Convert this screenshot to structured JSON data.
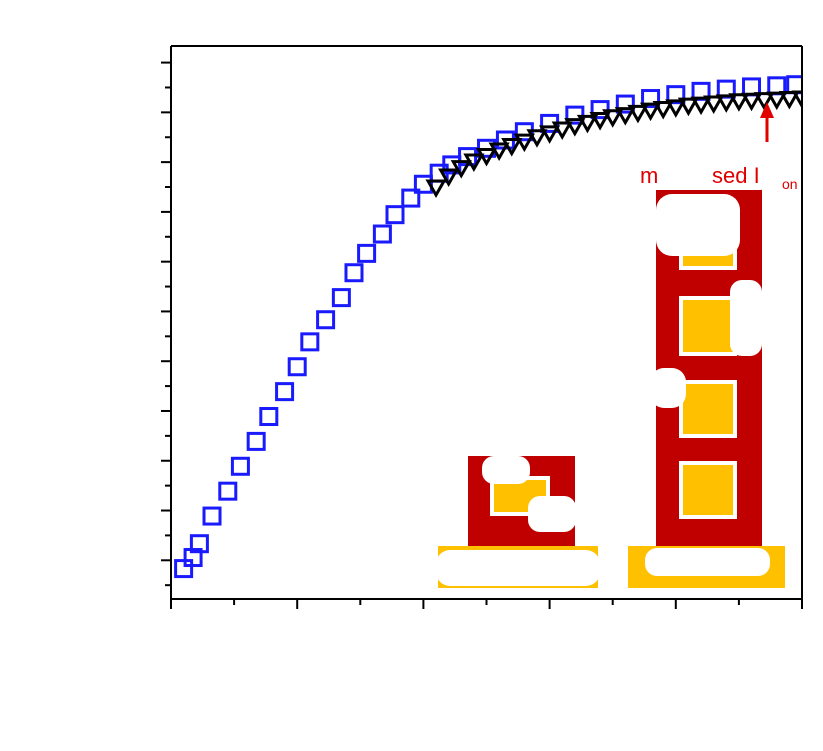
{
  "chart_data": {
    "type": "scatter",
    "title": "",
    "xlabel": "",
    "ylabel": "",
    "grid": false,
    "xlim": [
      0,
      1
    ],
    "ylim": [
      0,
      1
    ],
    "x_ticks": [
      0,
      0.1,
      0.2,
      0.3,
      0.4,
      0.5,
      0.6,
      0.7,
      0.8,
      0.9,
      1.0,
      1.1
    ],
    "y_ticks": [
      0.025,
      0.07,
      0.115,
      0.16,
      0.205,
      0.25,
      0.295,
      0.34,
      0.385,
      0.43,
      0.475,
      0.52,
      0.565,
      0.61,
      0.655,
      0.7,
      0.745,
      0.79,
      0.835,
      0.88,
      0.925,
      0.97
    ],
    "series": [
      {
        "marker": "open-square",
        "color": "#1a1aff",
        "x": [
          0.02,
          0.035,
          0.045,
          0.065,
          0.09,
          0.11,
          0.135,
          0.155,
          0.18,
          0.2,
          0.22,
          0.245,
          0.27,
          0.29,
          0.31,
          0.335,
          0.355,
          0.38,
          0.4,
          0.425,
          0.445,
          0.47,
          0.5,
          0.53,
          0.56,
          0.6,
          0.64,
          0.68,
          0.72,
          0.76,
          0.8,
          0.84,
          0.88,
          0.92,
          0.96,
          0.99
        ],
        "y": [
          0.055,
          0.075,
          0.1,
          0.15,
          0.195,
          0.24,
          0.285,
          0.33,
          0.375,
          0.42,
          0.465,
          0.505,
          0.545,
          0.59,
          0.625,
          0.66,
          0.695,
          0.725,
          0.75,
          0.77,
          0.785,
          0.8,
          0.815,
          0.83,
          0.845,
          0.86,
          0.875,
          0.885,
          0.895,
          0.905,
          0.912,
          0.918,
          0.922,
          0.926,
          0.928,
          0.93
        ]
      },
      {
        "marker": "open-triangle",
        "color": "#000000",
        "x": [
          0.42,
          0.44,
          0.46,
          0.48,
          0.5,
          0.52,
          0.54,
          0.56,
          0.58,
          0.6,
          0.62,
          0.64,
          0.66,
          0.68,
          0.7,
          0.72,
          0.74,
          0.76,
          0.78,
          0.8,
          0.82,
          0.84,
          0.86,
          0.88,
          0.9,
          0.92,
          0.94,
          0.96,
          0.98,
          1.0
        ],
        "y": [
          0.745,
          0.765,
          0.78,
          0.792,
          0.802,
          0.812,
          0.82,
          0.828,
          0.836,
          0.843,
          0.85,
          0.856,
          0.862,
          0.867,
          0.872,
          0.876,
          0.88,
          0.884,
          0.887,
          0.89,
          0.893,
          0.895,
          0.897,
          0.899,
          0.901,
          0.902,
          0.903,
          0.904,
          0.905,
          0.906
        ]
      }
    ],
    "annotation": {
      "text": "m",
      "text2": "sed I",
      "subscript": "on",
      "color": "#e00000"
    },
    "overlay": {
      "outer_color": "#c00000",
      "fill_color": "#ffc000"
    }
  }
}
